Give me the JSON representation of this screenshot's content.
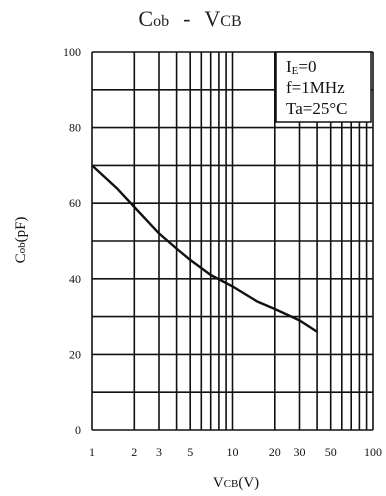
{
  "chart_data": {
    "type": "line",
    "title": {
      "main": "C",
      "sub": "ob",
      "dash": "-",
      "main2": "V",
      "sub2": "CB"
    },
    "xlabel": {
      "main": "V",
      "sub": "CB",
      "unit": "(V)"
    },
    "ylabel": {
      "main": "C",
      "sub": "ob",
      "unit": "(pF)"
    },
    "xscale": "log",
    "xlim": [
      1,
      100
    ],
    "ylim": [
      0,
      100
    ],
    "x_major_ticks": [
      1,
      2,
      3,
      5,
      10,
      20,
      30,
      50,
      100
    ],
    "x_grid_values": [
      1,
      2,
      3,
      4,
      5,
      6,
      7,
      8,
      9,
      10,
      20,
      30,
      40,
      50,
      60,
      70,
      80,
      90,
      100
    ],
    "y_ticks": [
      0,
      20,
      40,
      60,
      80,
      100
    ],
    "y_grid_step": 10,
    "grid": true,
    "conditions": [
      {
        "main": "I",
        "sub": "E",
        "rest": "=0"
      },
      {
        "main": "f=1MHz"
      },
      {
        "main": "Ta=25°C"
      }
    ],
    "conditions_placement": "top-right",
    "series": [
      {
        "x": [
          1,
          1.5,
          2,
          3,
          4,
          5,
          7,
          10,
          15,
          20,
          30,
          40
        ],
        "y": [
          70,
          64,
          59,
          52,
          48,
          45,
          41,
          38,
          34,
          32,
          29,
          26
        ]
      }
    ]
  }
}
